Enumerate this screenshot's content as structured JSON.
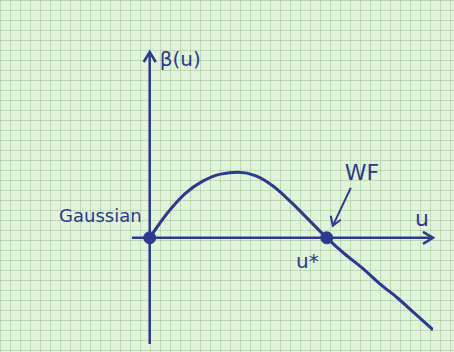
{
  "chart_data": {
    "type": "line",
    "x_label": "u",
    "y_label": "β(u)",
    "x": [
      0,
      0.1,
      0.2,
      0.3,
      0.4,
      0.5,
      0.6,
      0.7,
      0.8,
      0.9,
      1.0,
      1.1,
      1.2,
      1.3,
      1.4,
      1.5,
      1.6
    ],
    "values": [
      0,
      0.14,
      0.25,
      0.32,
      0.36,
      0.37,
      0.35,
      0.29,
      0.2,
      0.1,
      0,
      -0.09,
      -0.17,
      -0.26,
      -0.34,
      -0.43,
      -0.52
    ],
    "color": "#2b3a8c",
    "xlim": [
      -0.1,
      1.6
    ],
    "ylim": [
      -0.6,
      1.05
    ],
    "tick_labels": false,
    "grid": false,
    "fixed_points": [
      {
        "name": "Gaussian",
        "x": 0,
        "y": 0
      },
      {
        "name": "WF",
        "x": 1,
        "y": 0
      }
    ],
    "annotations": [
      {
        "text": "u*",
        "x": 1,
        "y": 0
      }
    ]
  }
}
